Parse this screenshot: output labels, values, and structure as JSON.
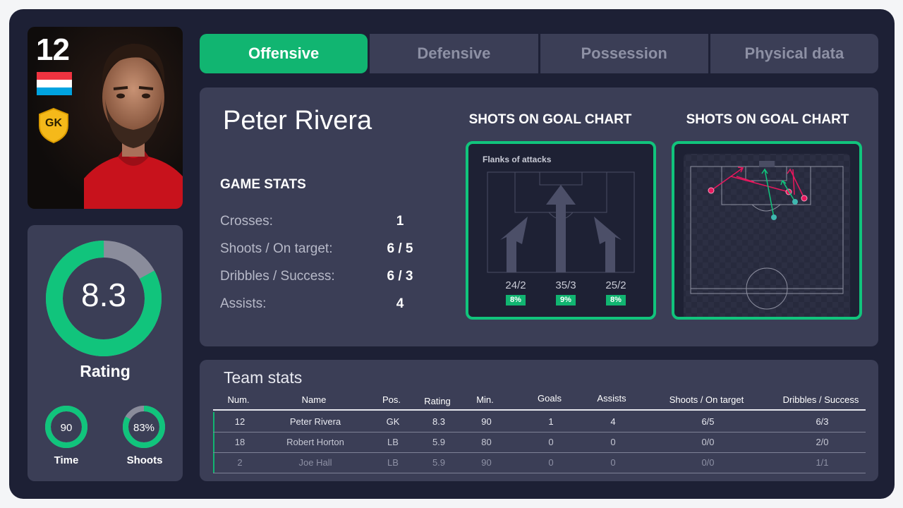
{
  "player": {
    "number": "12",
    "name": "Peter Rivera",
    "position": "GK",
    "flag_colors": [
      "#ef3340",
      "#ffffff",
      "#00a3e0"
    ],
    "rating": "8.3",
    "rating_label": "Rating",
    "rating_fraction": 0.83,
    "time_value": "90",
    "time_label": "Time",
    "time_fraction": 1.0,
    "shoots_value": "83%",
    "shoots_label": "Shoots",
    "shoots_fraction": 0.83
  },
  "tabs": [
    {
      "label": "Offensive",
      "active": true
    },
    {
      "label": "Defensive",
      "active": false
    },
    {
      "label": "Possession",
      "active": false
    },
    {
      "label": "Physical data",
      "active": false
    }
  ],
  "game_stats": {
    "title": "GAME STATS",
    "rows": [
      {
        "label": "Crosses:",
        "value": "1"
      },
      {
        "label": "Shoots / On target:",
        "value": "6 / 5"
      },
      {
        "label": "Dribbles / Success:",
        "value": "6 / 3"
      },
      {
        "label": "Assists:",
        "value": "4"
      }
    ]
  },
  "charts": {
    "left_title": "SHOTS ON GOAL CHART",
    "right_title": "SHOTS ON GOAL CHART",
    "flanks_title": "Flanks of attacks",
    "flanks": [
      {
        "value": "24/2",
        "pct": "8%"
      },
      {
        "value": "35/3",
        "pct": "9%"
      },
      {
        "value": "25/2",
        "pct": "8%"
      }
    ]
  },
  "team_stats": {
    "title": "Team stats",
    "headers": [
      "Num.",
      "Name",
      "Pos.",
      "Rating",
      "Min.",
      "Goals",
      "Assists",
      "Shoots / On target",
      "Dribbles / Success"
    ],
    "rows": [
      [
        "12",
        "Peter Rivera",
        "GK",
        "8.3",
        "90",
        "1",
        "4",
        "6/5",
        "6/3"
      ],
      [
        "18",
        "Robert Horton",
        "LB",
        "5.9",
        "80",
        "0",
        "0",
        "0/0",
        "2/0"
      ],
      [
        "2",
        "Joe Hall",
        "LB",
        "5.9",
        "90",
        "0",
        "0",
        "0/0",
        "1/1"
      ]
    ]
  },
  "colors": {
    "accent": "#11b571",
    "ring_track": "#8a8c9b",
    "shot_on_target": "#e8175d",
    "shot_assist": "#3fb8b0"
  }
}
